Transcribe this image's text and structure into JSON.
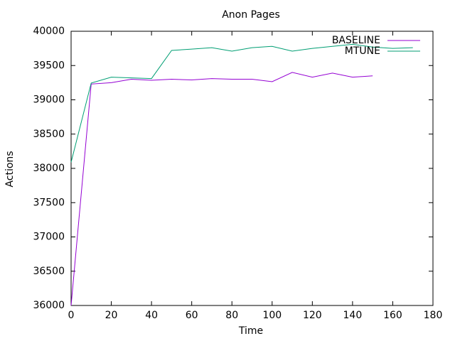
{
  "chart_data": {
    "type": "line",
    "title": "Anon Pages",
    "x_label": "Time",
    "y_label": "Actions",
    "x": [
      0,
      10,
      20,
      30,
      40,
      50,
      60,
      70,
      80,
      90,
      100,
      110,
      120,
      130,
      140,
      150,
      160,
      170
    ],
    "series": [
      {
        "name": "BASELINE",
        "color": "#9400d3",
        "values": [
          36000,
          39230,
          39250,
          39300,
          39285,
          39300,
          39290,
          39310,
          39300,
          39300,
          39265,
          39400,
          39330,
          39390,
          39330,
          39350,
          null,
          null
        ]
      },
      {
        "name": "MTUNE",
        "color": "#009e73",
        "values": [
          38090,
          39245,
          39330,
          39320,
          39310,
          39720,
          39740,
          39760,
          39710,
          39760,
          39780,
          39710,
          39750,
          39780,
          39810,
          39770,
          39750,
          39760
        ]
      }
    ],
    "xlim": [
      0,
      180
    ],
    "xticks": [
      0,
      20,
      40,
      60,
      80,
      100,
      120,
      140,
      160,
      180
    ],
    "ylim": [
      36000,
      40000
    ],
    "yticks": [
      36000,
      36500,
      37000,
      37500,
      38000,
      38500,
      39000,
      39500,
      40000
    ],
    "grid": false,
    "legend_position": "top-right"
  }
}
